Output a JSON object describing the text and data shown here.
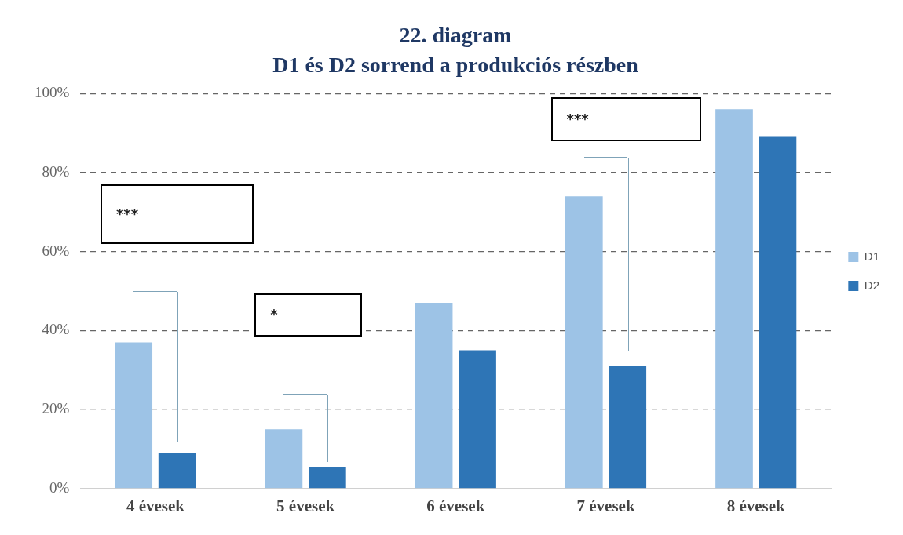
{
  "chart_data": {
    "type": "bar",
    "title": "22. diagram",
    "subtitle": "D1 és D2 sorrend a produkciós részben",
    "categories": [
      "4 évesek",
      "5 évesek",
      "6 évesek",
      "7 évesek",
      "8 évesek"
    ],
    "series": [
      {
        "name": "D1",
        "color": "#9dc3e6",
        "values": [
          37,
          15,
          47,
          74,
          96
        ]
      },
      {
        "name": "D2",
        "color": "#2e75b6",
        "values": [
          9,
          5.5,
          35,
          31,
          89
        ]
      }
    ],
    "ylim": [
      0,
      100
    ],
    "yticks": [
      {
        "value": 0,
        "label": "0%"
      },
      {
        "value": 20,
        "label": "20%"
      },
      {
        "value": 40,
        "label": "40%"
      },
      {
        "value": 60,
        "label": "60%"
      },
      {
        "value": 80,
        "label": "80%"
      },
      {
        "value": 100,
        "label": "100%"
      }
    ],
    "grid": "y",
    "legend": "right",
    "annotations": [
      "***",
      "*",
      "***"
    ]
  }
}
